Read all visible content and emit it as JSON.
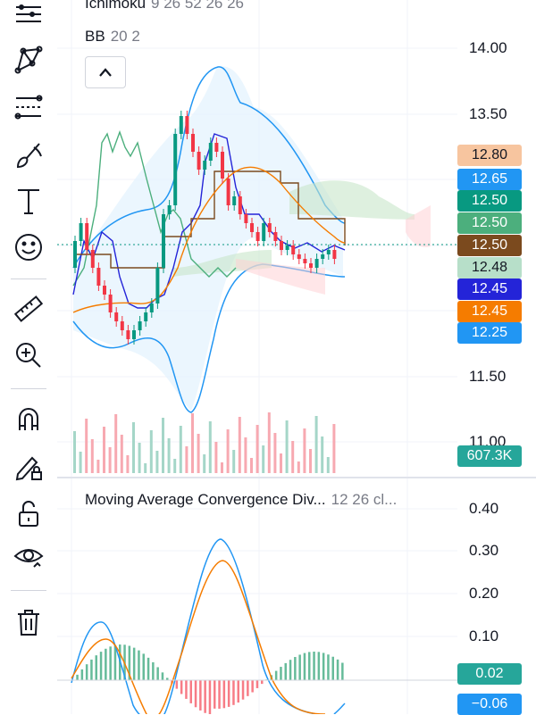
{
  "toolbar": {
    "tools": [
      {
        "name": "menu-lines-icon"
      },
      {
        "name": "pattern-tool-icon"
      },
      {
        "name": "fib-retracement-icon"
      },
      {
        "name": "brush-icon"
      },
      {
        "name": "text-tool-icon"
      },
      {
        "name": "emoji-icon"
      },
      {
        "name": "ruler-icon"
      },
      {
        "name": "zoom-in-icon"
      },
      {
        "name": "magnet-icon"
      },
      {
        "name": "lock-drawing-icon"
      },
      {
        "name": "unlock-icon"
      },
      {
        "name": "eye-icon"
      },
      {
        "name": "trash-icon"
      }
    ]
  },
  "legends": {
    "ichimoku": {
      "name": "Ichimoku",
      "params": "9 26 52 26 26"
    },
    "bb": {
      "name": "BB",
      "params": "20 2"
    },
    "macd": {
      "name": "Moving Average Convergence Div...",
      "params": "12 26 cl..."
    }
  },
  "price_axis": [
    "14.00",
    "13.50",
    "11.50",
    "11.00"
  ],
  "macd_axis": [
    "0.40",
    "0.30",
    "0.20",
    "0.10"
  ],
  "price_tags": [
    {
      "value": "12.80",
      "color": "#f7c59f",
      "text_color": "#131722"
    },
    {
      "value": "12.65",
      "color": "#2196f3",
      "text_color": "#ffffff"
    },
    {
      "value": "12.50",
      "color": "#089981",
      "text_color": "#ffffff"
    },
    {
      "value": "12.50",
      "color": "#4caf7d",
      "text_color": "#ffffff"
    },
    {
      "value": "12.50",
      "color": "#7b4a1e",
      "text_color": "#ffffff"
    },
    {
      "value": "12.48",
      "color": "#b7dfc9",
      "text_color": "#131722"
    },
    {
      "value": "12.45",
      "color": "#2424d8",
      "text_color": "#ffffff"
    },
    {
      "value": "12.45",
      "color": "#f57c00",
      "text_color": "#ffffff"
    },
    {
      "value": "12.25",
      "color": "#2196f3",
      "text_color": "#ffffff"
    }
  ],
  "volume_tag": {
    "value": "607.3K",
    "color": "#26a69a"
  },
  "macd_tags": [
    {
      "value": "0.02",
      "color": "#26a69a"
    },
    {
      "value": "−0.06",
      "color": "#2196f3"
    }
  ],
  "colors": {
    "up": "#089981",
    "down": "#f23645",
    "bb": "#2196f3",
    "bb_fill": "#e3f2fd",
    "macd": "#2196f3",
    "signal": "#f57c00"
  }
}
